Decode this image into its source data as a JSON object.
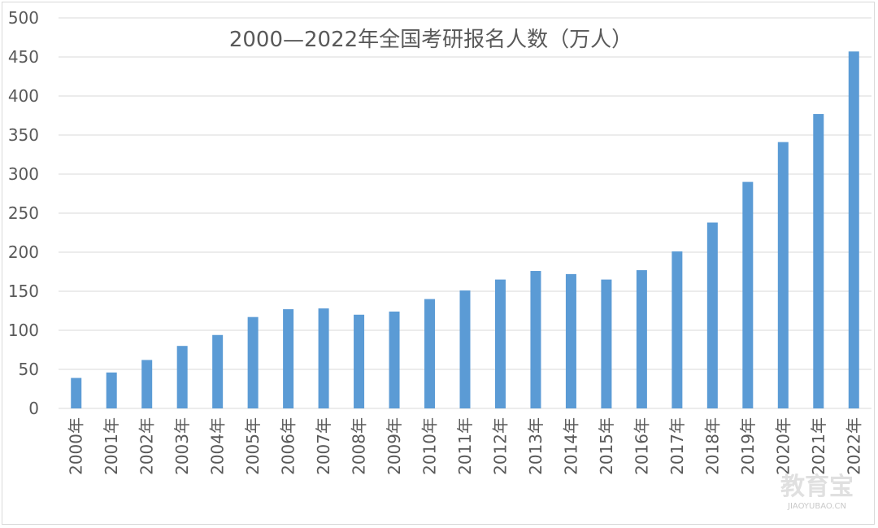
{
  "chart_data": {
    "type": "bar",
    "title": "2000—2022年全国考研报名人数（万人）",
    "categories": [
      "2000年",
      "2001年",
      "2002年",
      "2003年",
      "2004年",
      "2005年",
      "2006年",
      "2007年",
      "2008年",
      "2009年",
      "2010年",
      "2011年",
      "2012年",
      "2013年",
      "2014年",
      "2015年",
      "2016年",
      "2017年",
      "2018年",
      "2019年",
      "2020年",
      "2021年",
      "2022年"
    ],
    "values": [
      39,
      46,
      62,
      80,
      94,
      117,
      127,
      128,
      120,
      124,
      140,
      151,
      165,
      176,
      172,
      165,
      177,
      201,
      238,
      290,
      341,
      377,
      457
    ],
    "ylim": [
      0,
      500
    ],
    "yticks": [
      "0",
      "50",
      "100",
      "150",
      "200",
      "250",
      "300",
      "350",
      "400",
      "450",
      "500"
    ],
    "grid": true,
    "bar_color": "#5b9bd5"
  },
  "watermark": {
    "brand": "教育宝",
    "domain": "JIAOYUBAO.CN"
  }
}
